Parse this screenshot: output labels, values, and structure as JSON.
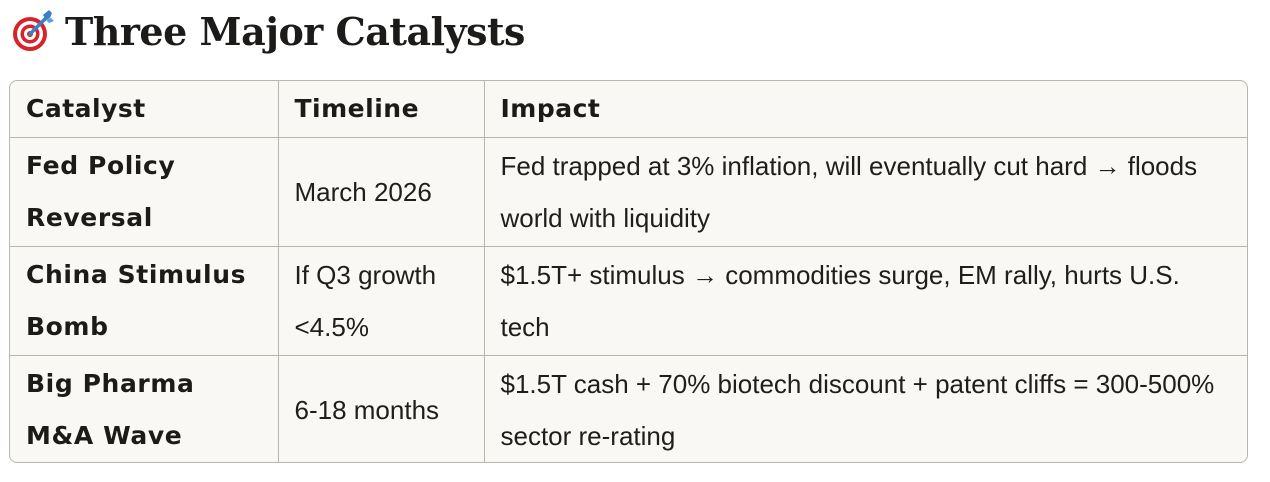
{
  "heading": {
    "icon": "target-dart-icon",
    "title": "Three Major Catalysts"
  },
  "table": {
    "columns": [
      "Catalyst",
      "Timeline",
      "Impact"
    ],
    "rows": [
      {
        "catalyst": "Fed Policy Reversal",
        "timeline": "March 2026",
        "impact": "Fed trapped at 3% inflation, will eventually cut hard → floods world with liquidity"
      },
      {
        "catalyst": "China Stimulus Bomb",
        "timeline": "If Q3 growth <4.5%",
        "impact": "$1.5T+ stimulus → commodities surge, EM rally, hurts U.S. tech"
      },
      {
        "catalyst": "Big Pharma M&A Wave",
        "timeline": "6-18 months",
        "impact": "$1.5T cash + 70% biotech discount + patent cliffs = 300-500% sector re-rating"
      }
    ]
  },
  "colors": {
    "table_background": "#f9f8f5",
    "border": "#b9b6ad",
    "text": "#1c1b19",
    "target_red": "#d8232a",
    "dart_blue": "#3d7fc4"
  }
}
